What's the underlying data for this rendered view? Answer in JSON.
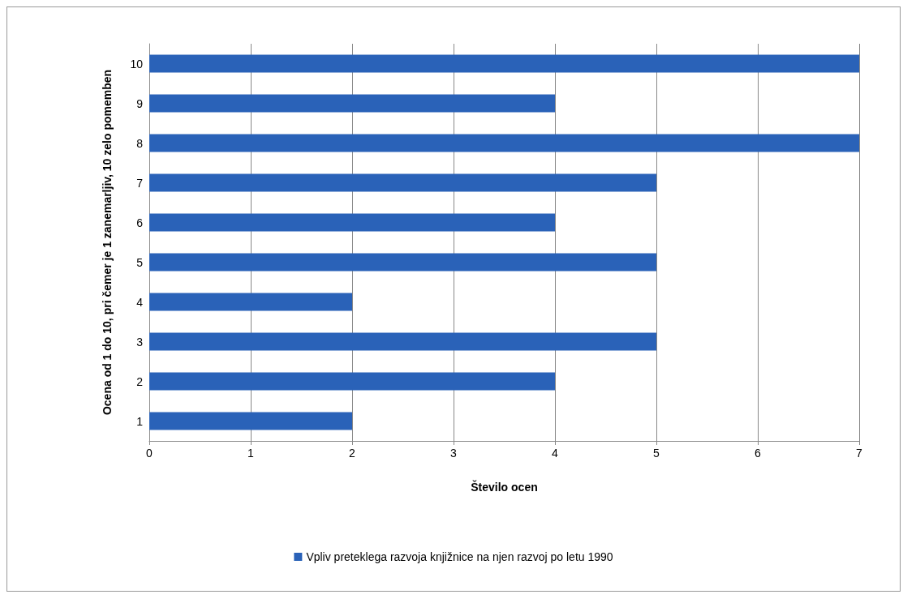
{
  "chart_data": {
    "type": "bar",
    "orientation": "horizontal",
    "xlabel": "Število ocen",
    "ylabel": "Ocena od 1 do 10, pri čemer je 1 zanemarljiv, 10 zelo pomemben",
    "categories": [
      "10",
      "9",
      "8",
      "7",
      "6",
      "5",
      "4",
      "3",
      "2",
      "1"
    ],
    "series": [
      {
        "name": "Vpliv preteklega razvoja knjižnice na njen razvoj po letu 1990",
        "color": "#2a62b8",
        "values": [
          7,
          4,
          7,
          5,
          4,
          5,
          2,
          5,
          4,
          2
        ]
      }
    ],
    "xlim": [
      0,
      7
    ],
    "xticks": [
      0,
      1,
      2,
      3,
      4,
      5,
      6,
      7
    ],
    "grid": "x",
    "legend": "bottom"
  }
}
